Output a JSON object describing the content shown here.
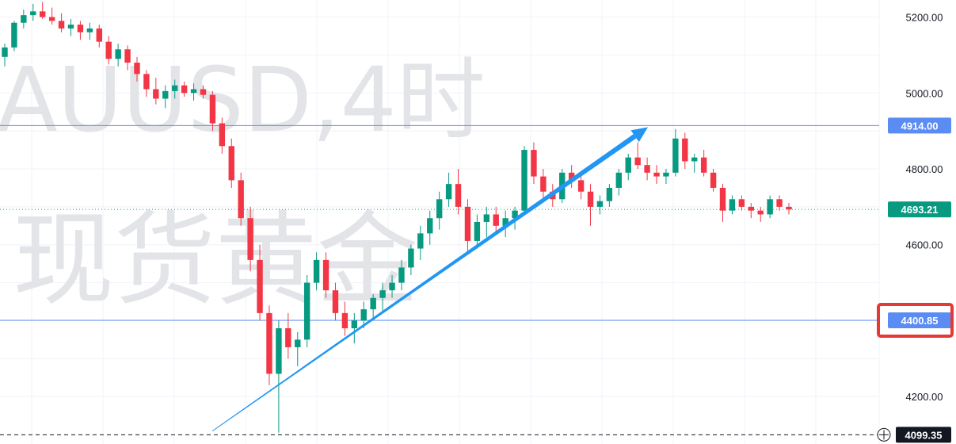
{
  "watermark": {
    "line1": "AUUSD,4时",
    "line2": "现货黄金"
  },
  "chart_data": {
    "type": "candlestick",
    "y_axis": {
      "ticks": [
        "5200.00",
        "5000.00",
        "4800.00",
        "4600.00",
        "4200.00"
      ],
      "range": [
        4075,
        5245
      ],
      "side": "right"
    },
    "grid": true,
    "levels": [
      {
        "value": 4914.0,
        "label": "4914.00",
        "style": "solid",
        "color": "#5b8cf3"
      },
      {
        "value": 4400.85,
        "label": "4400.85",
        "style": "solid",
        "color": "#5b8cf3",
        "highlighted": true
      },
      {
        "value": 4693.21,
        "label": "4693.21",
        "style": "dotted",
        "color": "#089981",
        "role": "last-price"
      },
      {
        "value": 4099.35,
        "label": "4099.35",
        "style": "dashed",
        "color": "#131722",
        "role": "crosshair"
      }
    ],
    "trend_arrow": {
      "from": 4109,
      "to": 4910,
      "color": "#2196f3"
    },
    "colors": {
      "up": "#089981",
      "down": "#f23645",
      "highlight_box": "#e53935"
    },
    "candles": [
      [
        5095,
        5130,
        5070,
        5120
      ],
      [
        5120,
        5190,
        5110,
        5185
      ],
      [
        5185,
        5220,
        5170,
        5205
      ],
      [
        5205,
        5235,
        5190,
        5215
      ],
      [
        5215,
        5240,
        5195,
        5200
      ],
      [
        5200,
        5225,
        5180,
        5190
      ],
      [
        5190,
        5210,
        5160,
        5170
      ],
      [
        5170,
        5195,
        5150,
        5180
      ],
      [
        5180,
        5190,
        5140,
        5160
      ],
      [
        5160,
        5185,
        5140,
        5170
      ],
      [
        5170,
        5180,
        5120,
        5135
      ],
      [
        5135,
        5150,
        5075,
        5090
      ],
      [
        5090,
        5130,
        5070,
        5115
      ],
      [
        5115,
        5125,
        5060,
        5080
      ],
      [
        5080,
        5095,
        5030,
        5050
      ],
      [
        5050,
        5060,
        4990,
        5010
      ],
      [
        5010,
        5040,
        4970,
        4985
      ],
      [
        4985,
        5020,
        4960,
        5005
      ],
      [
        5005,
        5035,
        4985,
        5020
      ],
      [
        5020,
        5030,
        4990,
        5000
      ],
      [
        5000,
        5025,
        4980,
        5010
      ],
      [
        5010,
        5020,
        4985,
        4995
      ],
      [
        4995,
        5005,
        4900,
        4920
      ],
      [
        4920,
        4935,
        4840,
        4860
      ],
      [
        4860,
        4880,
        4750,
        4770
      ],
      [
        4770,
        4790,
        4650,
        4670
      ],
      [
        4670,
        4700,
        4530,
        4560
      ],
      [
        4560,
        4600,
        4400,
        4420
      ],
      [
        4420,
        4440,
        4230,
        4260
      ],
      [
        4260,
        4400,
        4105,
        4380
      ],
      [
        4380,
        4420,
        4300,
        4330
      ],
      [
        4330,
        4370,
        4280,
        4350
      ],
      [
        4350,
        4520,
        4330,
        4500
      ],
      [
        4500,
        4580,
        4480,
        4560
      ],
      [
        4560,
        4580,
        4460,
        4480
      ],
      [
        4480,
        4500,
        4400,
        4420
      ],
      [
        4420,
        4450,
        4360,
        4380
      ],
      [
        4380,
        4420,
        4340,
        4400
      ],
      [
        4400,
        4450,
        4380,
        4430
      ],
      [
        4430,
        4470,
        4400,
        4460
      ],
      [
        4460,
        4500,
        4420,
        4480
      ],
      [
        4480,
        4520,
        4460,
        4500
      ],
      [
        4500,
        4560,
        4480,
        4540
      ],
      [
        4540,
        4600,
        4520,
        4590
      ],
      [
        4590,
        4650,
        4560,
        4630
      ],
      [
        4630,
        4690,
        4600,
        4670
      ],
      [
        4670,
        4740,
        4640,
        4720
      ],
      [
        4720,
        4790,
        4700,
        4760
      ],
      [
        4760,
        4800,
        4680,
        4700
      ],
      [
        4700,
        4720,
        4580,
        4610
      ],
      [
        4610,
        4680,
        4590,
        4660
      ],
      [
        4660,
        4700,
        4620,
        4680
      ],
      [
        4680,
        4700,
        4630,
        4650
      ],
      [
        4650,
        4690,
        4620,
        4670
      ],
      [
        4670,
        4700,
        4640,
        4690
      ],
      [
        4690,
        4860,
        4680,
        4850
      ],
      [
        4850,
        4870,
        4760,
        4780
      ],
      [
        4780,
        4800,
        4720,
        4740
      ],
      [
        4740,
        4760,
        4700,
        4720
      ],
      [
        4720,
        4800,
        4710,
        4790
      ],
      [
        4790,
        4810,
        4750,
        4770
      ],
      [
        4770,
        4790,
        4720,
        4740
      ],
      [
        4740,
        4760,
        4650,
        4700
      ],
      [
        4700,
        4730,
        4680,
        4715
      ],
      [
        4715,
        4760,
        4700,
        4750
      ],
      [
        4750,
        4800,
        4730,
        4790
      ],
      [
        4790,
        4840,
        4770,
        4830
      ],
      [
        4830,
        4870,
        4800,
        4810
      ],
      [
        4810,
        4830,
        4770,
        4790
      ],
      [
        4790,
        4810,
        4760,
        4780
      ],
      [
        4780,
        4800,
        4760,
        4790
      ],
      [
        4790,
        4905,
        4780,
        4880
      ],
      [
        4880,
        4895,
        4800,
        4820
      ],
      [
        4820,
        4840,
        4790,
        4830
      ],
      [
        4830,
        4850,
        4780,
        4790
      ],
      [
        4790,
        4800,
        4740,
        4750
      ],
      [
        4750,
        4760,
        4660,
        4690
      ],
      [
        4690,
        4730,
        4680,
        4720
      ],
      [
        4720,
        4730,
        4690,
        4700
      ],
      [
        4700,
        4710,
        4670,
        4690
      ],
      [
        4690,
        4700,
        4660,
        4680
      ],
      [
        4680,
        4730,
        4670,
        4720
      ],
      [
        4720,
        4730,
        4690,
        4700
      ],
      [
        4700,
        4710,
        4680,
        4693
      ]
    ]
  }
}
